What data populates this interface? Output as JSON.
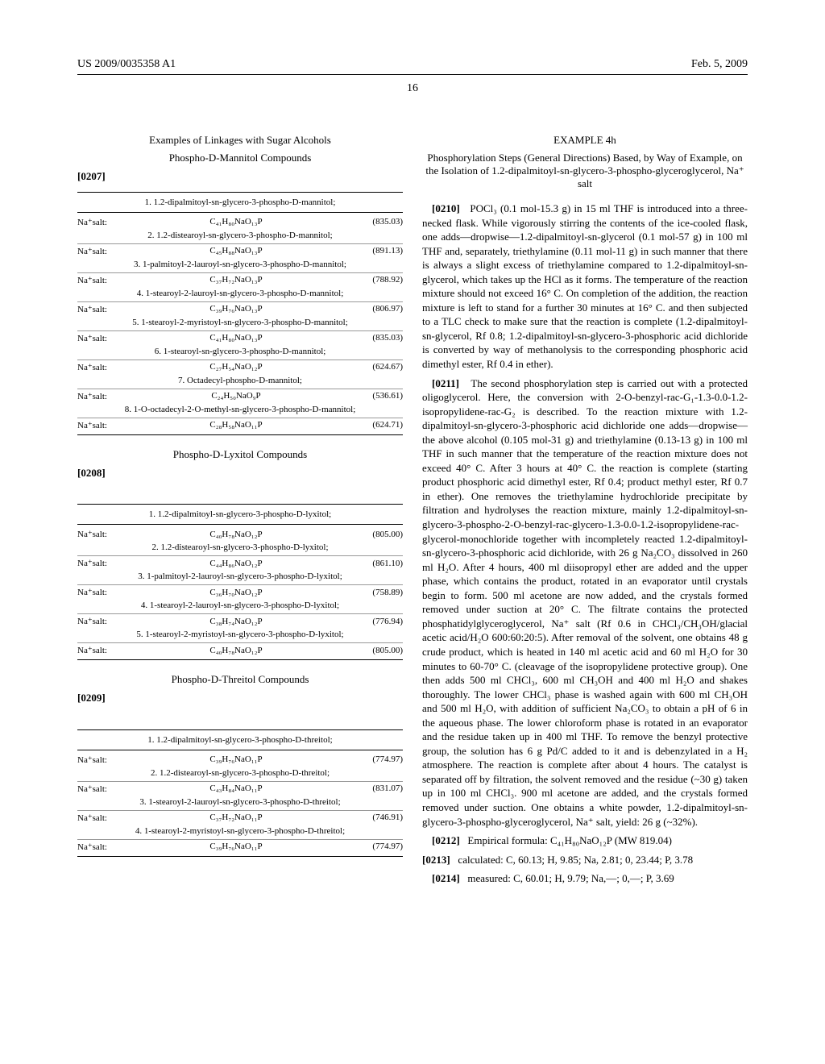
{
  "header": {
    "left": "US 2009/0035358 A1",
    "right": "Feb. 5, 2009",
    "page_number": "16"
  },
  "left_col": {
    "linkages_title": "Examples of Linkages with Sugar Alcohols",
    "mannitol_title": "Phospho-D-Mannitol Compounds",
    "mannitol_num": "[0207]",
    "mannitol_table": {
      "head": "1. 1.2-dipalmitoyl-sn-glycero-3-phospho-D-mannitol;",
      "rows": [
        {
          "label": "Na⁺salt:",
          "formula": "C₄₁H₈₀NaO₁₃P",
          "mw": "(835.03)",
          "sub": "2. 1.2-distearoyl-sn-glycero-3-phospho-D-mannitol;"
        },
        {
          "label": "Na⁺salt:",
          "formula": "C₄₅H₈₈NaO₁₃P",
          "mw": "(891.13)",
          "sub": "3. 1-palmitoyl-2-lauroyl-sn-glycero-3-phospho-D-mannitol;"
        },
        {
          "label": "Na⁺salt:",
          "formula": "C₃₇H₇₂NaO₁₃P",
          "mw": "(788.92)",
          "sub": "4. 1-stearoyl-2-lauroyl-sn-glycero-3-phospho-D-mannitol;"
        },
        {
          "label": "Na⁺salt:",
          "formula": "C₃₉H₇₆NaO₁₃P",
          "mw": "(806.97)",
          "sub": "5. 1-stearoyl-2-myristoyl-sn-glycero-3-phospho-D-mannitol;"
        },
        {
          "label": "Na⁺salt:",
          "formula": "C₄₁H₈₀NaO₁₃P",
          "mw": "(835.03)",
          "sub": "6. 1-stearoyl-sn-glycero-3-phospho-D-mannitol;"
        },
        {
          "label": "Na⁺salt:",
          "formula": "C₂₇H₅₄NaO₁₂P",
          "mw": "(624.67)",
          "sub": "7. Octadecyl-phospho-D-mannitol;"
        },
        {
          "label": "Na⁺salt:",
          "formula": "C₂₄H₅₀NaO₉P",
          "mw": "(536.61)",
          "sub": "8. 1-O-octadecyl-2-O-methyl-sn-glycero-3-phospho-D-mannitol;"
        },
        {
          "label": "Na⁺salt:",
          "formula": "C₂₈H₅₈NaO₁₁P",
          "mw": "(624.71)",
          "sub": ""
        }
      ]
    },
    "lyxitol_title": "Phospho-D-Lyxitol Compounds",
    "lyxitol_num": "[0208]",
    "lyxitol_table": {
      "head": "1. 1.2-dipalmitoyl-sn-glycero-3-phospho-D-lyxitol;",
      "rows": [
        {
          "label": "Na⁺salt:",
          "formula": "C₄₀H₇₈NaO₁₂P",
          "mw": "(805.00)",
          "sub": "2. 1.2-distearoyl-sn-glycero-3-phospho-D-lyxitol;"
        },
        {
          "label": "Na⁺salt:",
          "formula": "C₄₄H₈₆NaO₁₂P",
          "mw": "(861.10)",
          "sub": "3. 1-palmitoyl-2-lauroyl-sn-glycero-3-phospho-D-lyxitol;"
        },
        {
          "label": "Na⁺salt:",
          "formula": "C₃₆H₇₀NaO₁₂P",
          "mw": "(758.89)",
          "sub": "4. 1-stearoyl-2-lauroyl-sn-glycero-3-phospho-D-lyxitol;"
        },
        {
          "label": "Na⁺salt:",
          "formula": "C₃₈H₇₄NaO₁₂P",
          "mw": "(776.94)",
          "sub": "5. 1-stearoyl-2-myristoyl-sn-glycero-3-phospho-D-lyxitol;"
        },
        {
          "label": "Na⁺salt:",
          "formula": "C₄₀H₇₈NaO₁₂P",
          "mw": "(805.00)",
          "sub": ""
        }
      ]
    },
    "threitol_title": "Phospho-D-Threitol Compounds",
    "threitol_num": "[0209]",
    "threitol_table": {
      "head": "1. 1.2-dipalmitoyl-sn-glycero-3-phospho-D-threitol;",
      "rows": [
        {
          "label": "Na⁺salt:",
          "formula": "C₃₉H₇₆NaO₁₁P",
          "mw": "(774.97)",
          "sub": "2. 1.2-distearoyl-sn-glycero-3-phospho-D-threitol;"
        },
        {
          "label": "Na⁺salt:",
          "formula": "C₄₃H₈₄NaO₁₁P",
          "mw": "(831.07)",
          "sub": "3. 1-stearoyl-2-lauroyl-sn-glycero-3-phospho-D-threitol;"
        },
        {
          "label": "Na⁺salt:",
          "formula": "C₃₇H₇₂NaO₁₁P",
          "mw": "(746.91)",
          "sub": "4. 1-stearoyl-2-myristoyl-sn-glycero-3-phospho-D-threitol;"
        },
        {
          "label": "Na⁺salt:",
          "formula": "C₃₉H₇₆NaO₁₁P",
          "mw": "(774.97)",
          "sub": ""
        }
      ]
    }
  },
  "right_col": {
    "example_title": "EXAMPLE 4h",
    "example_subtitle": "Phosphorylation Steps (General Directions) Based, by Way of Example, on the Isolation of 1.2-dipalmitoyl-sn-glycero-3-phospho-glyceroglycerol, Na⁺ salt",
    "p0210_num": "[0210]",
    "p0210": "POCl₃ (0.1 mol-15.3 g) in 15 ml THF is introduced into a three-necked flask. While vigorously stirring the contents of the ice-cooled flask, one adds—dropwise—1.2-dipalmitoyl-sn-glycerol (0.1 mol-57 g) in 100 ml THF and, separately, triethylamine (0.11 mol-11 g) in such manner that there is always a slight excess of triethylamine compared to 1.2-dipalmitoyl-sn-glycerol, which takes up the HCl as it forms. The temperature of the reaction mixture should not exceed 16° C. On completion of the addition, the reaction mixture is left to stand for a further 30 minutes at 16° C. and then subjected to a TLC check to make sure that the reaction is complete (1.2-dipalmitoyl-sn-glycerol, Rf 0.8; 1.2-dipalmitoyl-sn-glycero-3-phosphoric acid dichloride is converted by way of methanolysis to the corresponding phosphoric acid dimethyl ester, Rf 0.4 in ether).",
    "p0211_num": "[0211]",
    "p0211": "The second phosphorylation step is carried out with a protected oligoglycerol. Here, the conversion with 2-O-benzyl-rac-G₁-1.3-0.0-1.2-isopropylidene-rac-G₂ is described. To the reaction mixture with 1.2-dipalmitoyl-sn-glycero-3-phosphoric acid dichloride one adds—dropwise—the above alcohol (0.105 mol-31 g) and triethylamine (0.13-13 g) in 100 ml THF in such manner that the temperature of the reaction mixture does not exceed 40° C. After 3 hours at 40° C. the reaction is complete (starting product phosphoric acid dimethyl ester, Rf 0.4; product methyl ester, Rf 0.7 in ether). One removes the triethylamine hydrochloride precipitate by filtration and hydrolyses the reaction mixture, mainly 1.2-dipalmitoyl-sn-glycero-3-phospho-2-O-benzyl-rac-glycero-1.3-0.0-1.2-isopropylidene-rac-glycerol-monochloride together with incompletely reacted 1.2-dipalmitoyl-sn-glycero-3-phosphoric acid dichloride, with 26 g Na₂CO₃ dissolved in 260 ml H₂O. After 4 hours, 400 ml diisopropyl ether are added and the upper phase, which contains the product, rotated in an evaporator until crystals begin to form. 500 ml acetone are now added, and the crystals formed removed under suction at 20° C. The filtrate contains the protected phosphatidylglyceroglycerol, Na⁺ salt (Rf 0.6 in CHCl₃/CH₃OH/glacial acetic acid/H₂O 600:60:20:5). After removal of the solvent, one obtains 48 g crude product, which is heated in 140 ml acetic acid and 60 ml H₂O for 30 minutes to 60-70° C. (cleavage of the isopropylidene protective group). One then adds 500 ml CHCl₃, 600 ml CH₃OH and 400 ml H₂O and shakes thoroughly. The lower CHCl₃ phase is washed again with 600 ml CH₃OH and 500 ml H₂O, with addition of sufficient Na₂CO₃ to obtain a pH of 6 in the aqueous phase. The lower chloroform phase is rotated in an evaporator and the residue taken up in 400 ml THF. To remove the benzyl protective group, the solution has 6 g Pd/C added to it and is debenzylated in a H₂ atmosphere. The reaction is complete after about 4 hours. The catalyst is separated off by filtration, the solvent removed and the residue (~30 g) taken up in 100 ml CHCl₃. 900 ml acetone are added, and the crystals formed removed under suction. One obtains a white powder, 1.2-dipalmitoyl-sn-glycero-3-phospho-glyceroglycerol, Na⁺ salt, yield: 26 g (~32%).",
    "p0212_num": "[0212]",
    "p0212": "Empirical formula: C₄₁H₈₀NaO₁₂P (MW 819.04)",
    "p0213_num": "[0213]",
    "p0213": "calculated: C, 60.13; H, 9.85; Na, 2.81; 0, 23.44; P, 3.78",
    "p0214_num": "[0214]",
    "p0214": "measured: C, 60.01; H, 9.79; Na,—; 0,—; P, 3.69"
  }
}
